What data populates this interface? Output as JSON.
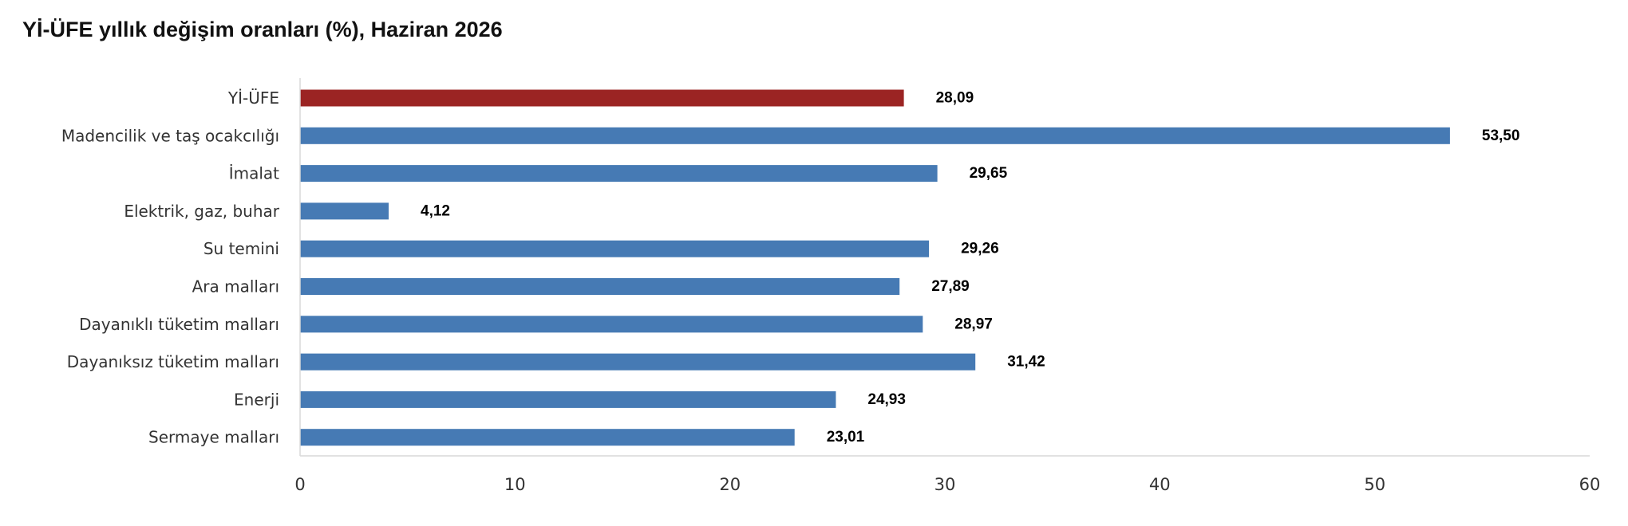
{
  "title": "Yİ-ÜFE yıllık değişim oranları (%), Haziran 2026",
  "colors": {
    "highlight": "#9b2423",
    "bar": "#467ab4",
    "axis": "#d9d9d9",
    "text": "#333333"
  },
  "chart_data": {
    "type": "bar",
    "orientation": "horizontal",
    "title": "Yİ-ÜFE yıllık değişim oranları (%), Haziran 2026",
    "categories": [
      "Yİ-ÜFE",
      "Madencilik ve taş ocakcılığı",
      "İmalat",
      "Elektrik, gaz, buhar",
      "Su temini",
      "Ara malları",
      "Dayanıklı tüketim malları",
      "Dayanıksız tüketim malları",
      "Enerji",
      "Sermaye malları"
    ],
    "values": [
      28.09,
      53.5,
      29.65,
      4.12,
      29.26,
      27.89,
      28.97,
      31.42,
      24.93,
      23.01
    ],
    "value_labels": [
      "28,09",
      "53,50",
      "29,65",
      "4,12",
      "29,26",
      "27,89",
      "28,97",
      "31,42",
      "24,93",
      "23,01"
    ],
    "highlight_index": 0,
    "xlim": [
      0,
      60
    ],
    "xticks": [
      0,
      10,
      20,
      30,
      40,
      50,
      60
    ],
    "xlabel": "",
    "ylabel": "",
    "grid": false,
    "legend": "none"
  }
}
